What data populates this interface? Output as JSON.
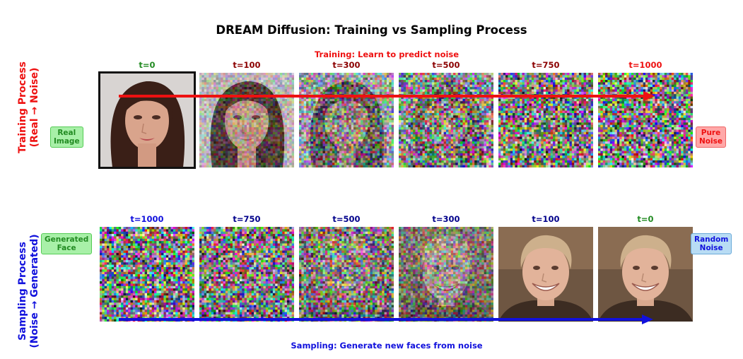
{
  "title": "DREAM Diffusion: Training vs Sampling Process",
  "colors": {
    "training": "#ee1111",
    "sampling": "#1111dd",
    "t0": "#228b22",
    "training_mid": "#8b0000",
    "sampling_mid": "#00008b",
    "green_badge_bg": "#a8f0a8",
    "green_badge_border": "#55cc55",
    "red_badge_bg": "#ffa8a8",
    "red_badge_border": "#ee6666",
    "blue_badge_bg": "#b8dcf4",
    "blue_badge_border": "#6aaad8"
  },
  "training": {
    "row_label_line1": "Training Process",
    "row_label_line2": "(Real → Noise)",
    "caption": "Training: Learn to predict noise",
    "left_badge_line1": "Real",
    "left_badge_line2": "Image",
    "right_badge_line1": "Pure",
    "right_badge_line2": "Noise",
    "steps": [
      {
        "label": "t=0",
        "noise": 0.0
      },
      {
        "label": "t=100",
        "noise": 0.35
      },
      {
        "label": "t=300",
        "noise": 0.65
      },
      {
        "label": "t=500",
        "noise": 0.82
      },
      {
        "label": "t=750",
        "noise": 0.94
      },
      {
        "label": "t=1000",
        "noise": 1.0
      }
    ]
  },
  "sampling": {
    "row_label_line1": "Sampling Process",
    "row_label_line2": "(Noise → Generated)",
    "caption": "Sampling: Generate new faces from noise",
    "left_badge_line1": "Generated",
    "left_badge_line2": "Face",
    "right_badge_line1": "Random",
    "right_badge_line2": "Noise",
    "steps": [
      {
        "label": "t=1000",
        "noise": 1.0
      },
      {
        "label": "t=750",
        "noise": 0.92
      },
      {
        "label": "t=500",
        "noise": 0.78
      },
      {
        "label": "t=300",
        "noise": 0.55
      },
      {
        "label": "t=100",
        "noise": 0.0
      },
      {
        "label": "t=0",
        "noise": 0.0
      }
    ]
  }
}
